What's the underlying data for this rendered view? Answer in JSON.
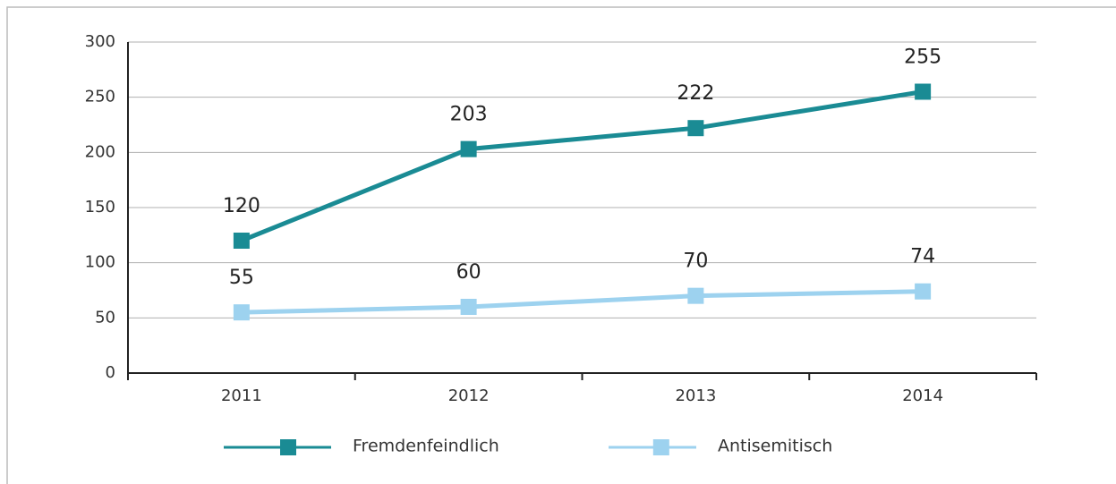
{
  "chart_data": {
    "type": "line",
    "categories": [
      "2011",
      "2012",
      "2013",
      "2014"
    ],
    "series": [
      {
        "name": "Fremdenfeindlich",
        "color": "#1a8b94",
        "values": [
          120,
          203,
          222,
          255
        ]
      },
      {
        "name": "Antisemitisch",
        "color": "#9dd2ef",
        "values": [
          55,
          60,
          70,
          74
        ]
      }
    ],
    "ylim": [
      0,
      300
    ],
    "yticks": [
      0,
      50,
      100,
      150,
      200,
      250,
      300
    ],
    "grid": true,
    "legend": "bottom"
  }
}
